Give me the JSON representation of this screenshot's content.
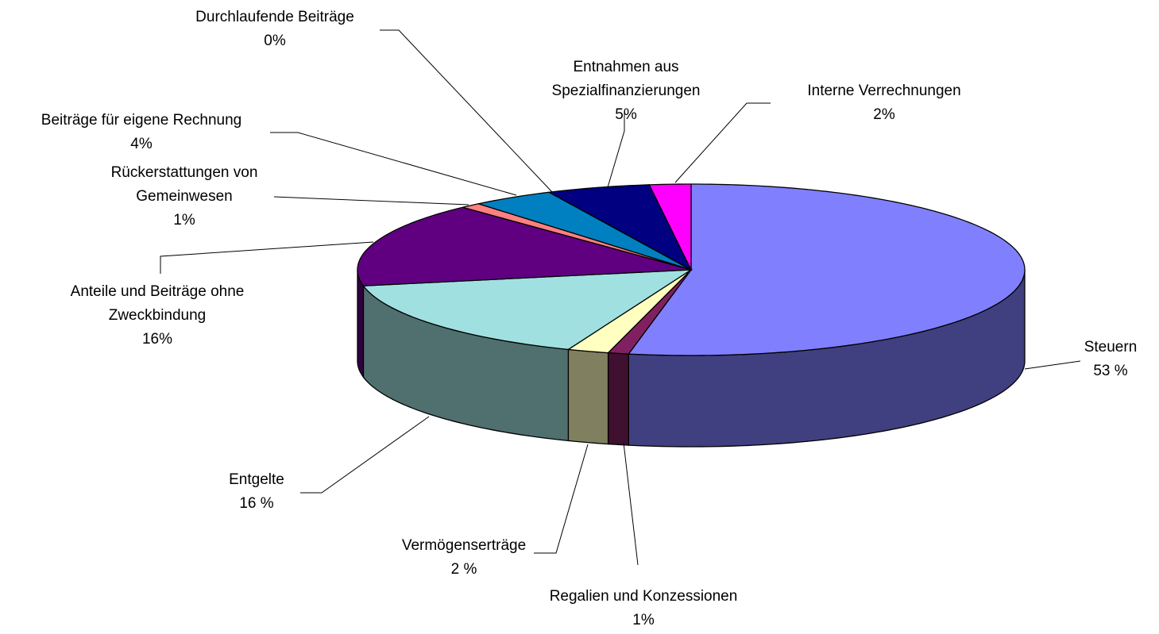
{
  "chart_data": {
    "type": "pie3d",
    "categories": [
      "Steuern",
      "Regalien und Konzessionen",
      "Vermögenserträge",
      "Entgelte",
      "Anteile und Beiträge ohne\nZweckbindung",
      "Rückerstattungen von\nGemeinwesen",
      "Beiträge für eigene Rechnung",
      "Durchlaufende Beiträge",
      "Entnahmen aus\nSpezialfinanzierungen",
      "Interne Verrechnungen"
    ],
    "values": [
      53,
      1,
      2,
      16,
      16,
      1,
      4,
      0,
      5,
      2
    ],
    "value_labels": [
      "53 %",
      "1%",
      "2 %",
      "16 %",
      "16%",
      "1%",
      "4%",
      "0%",
      "5%",
      "2%"
    ],
    "colors": [
      "#8080ff",
      "#802060",
      "#ffffc0",
      "#a0e0e0",
      "#600080",
      "#ff8080",
      "#0080c0",
      "#c0c0ff",
      "#000080",
      "#ff00ff"
    ]
  }
}
